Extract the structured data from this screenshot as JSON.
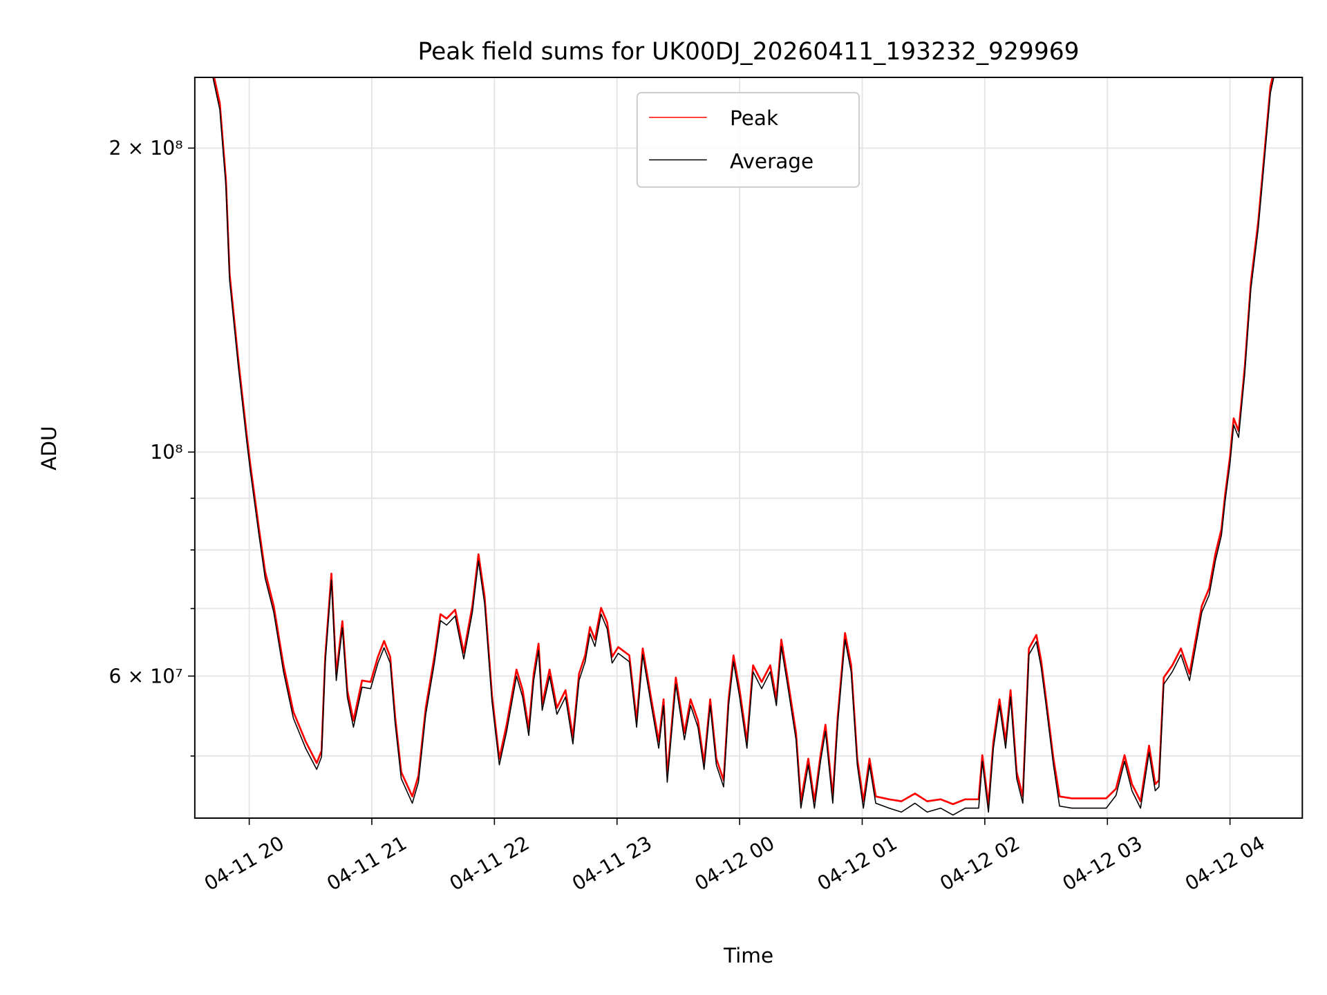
{
  "chart_data": {
    "type": "line",
    "title": "Peak field sums for UK00DJ_20260411_193232_929969",
    "xlabel": "Time",
    "ylabel": "ADU",
    "yscale": "log",
    "ylim": [
      43400000,
      235000000
    ],
    "xlim_hours": [
      19.556,
      28.59
    ],
    "x_unit": "hours since 04-11 00:00",
    "value_scale": 1000000,
    "grid": true,
    "legend_position": "upper-center",
    "x_ticks": [
      {
        "h": 20,
        "label": "04-11 20"
      },
      {
        "h": 21,
        "label": "04-11 21"
      },
      {
        "h": 22,
        "label": "04-11 22"
      },
      {
        "h": 23,
        "label": "04-11 23"
      },
      {
        "h": 24,
        "label": "04-12 00"
      },
      {
        "h": 25,
        "label": "04-12 01"
      },
      {
        "h": 26,
        "label": "04-12 02"
      },
      {
        "h": 27,
        "label": "04-12 03"
      },
      {
        "h": 28,
        "label": "04-12 04"
      }
    ],
    "y_ticks": [
      {
        "v": 200000000,
        "label": "2 × 10⁸"
      },
      {
        "v": 100000000,
        "label": "10⁸"
      },
      {
        "v": 60000000,
        "label": "6 × 10⁷"
      }
    ],
    "y_minor_ticks": [
      50000000,
      70000000,
      80000000,
      90000000
    ],
    "x": [
      19.56,
      19.7,
      19.76,
      19.81,
      19.84,
      19.91,
      19.98,
      20.01,
      20.08,
      20.13,
      20.2,
      20.28,
      20.36,
      20.46,
      20.55,
      20.59,
      20.62,
      20.67,
      20.71,
      20.76,
      20.8,
      20.85,
      20.92,
      20.99,
      21.05,
      21.1,
      21.15,
      21.19,
      21.24,
      21.33,
      21.38,
      21.44,
      21.51,
      21.56,
      21.61,
      21.68,
      21.75,
      21.82,
      21.87,
      21.92,
      21.98,
      22.04,
      22.1,
      22.18,
      22.23,
      22.28,
      22.32,
      22.36,
      22.39,
      22.45,
      22.51,
      22.58,
      22.64,
      22.69,
      22.74,
      22.78,
      22.82,
      22.87,
      22.92,
      22.96,
      23.01,
      23.1,
      23.16,
      23.21,
      23.28,
      23.34,
      23.38,
      23.41,
      23.48,
      23.55,
      23.6,
      23.66,
      23.71,
      23.76,
      23.81,
      23.87,
      23.91,
      23.95,
      24.0,
      24.06,
      24.11,
      24.18,
      24.25,
      24.3,
      24.34,
      24.39,
      24.46,
      24.5,
      24.56,
      24.61,
      24.66,
      24.7,
      24.76,
      24.8,
      24.86,
      24.91,
      24.96,
      25.01,
      25.06,
      25.11,
      25.22,
      25.32,
      25.43,
      25.53,
      25.64,
      25.74,
      25.84,
      25.95,
      25.98,
      26.03,
      26.07,
      26.12,
      26.17,
      26.21,
      26.26,
      26.31,
      26.36,
      26.42,
      26.46,
      26.5,
      26.56,
      26.61,
      26.71,
      26.85,
      26.99,
      27.07,
      27.14,
      27.2,
      27.27,
      27.34,
      27.39,
      27.42,
      27.46,
      27.53,
      27.6,
      27.67,
      27.72,
      27.77,
      27.83,
      27.88,
      27.93,
      27.96,
      28.0,
      28.03,
      28.07,
      28.12,
      28.17,
      28.23,
      28.28,
      28.33,
      28.36,
      28.59
    ],
    "series": [
      {
        "name": "Peak",
        "color": "#ff0000",
        "values": [
          240,
          239,
          221.6,
          186.0,
          150.2,
          123.7,
          103.9,
          97.0,
          83.9,
          76.1,
          70.4,
          61.5,
          55.3,
          51.7,
          49.2,
          50.6,
          62.7,
          75.8,
          60.3,
          68.0,
          58.1,
          54.2,
          59.4,
          59.2,
          62.7,
          65.0,
          62.7,
          54.7,
          48.2,
          45.6,
          47.8,
          55.8,
          62.7,
          69.1,
          68.4,
          69.8,
          63.3,
          70.4,
          79.2,
          71.9,
          57.4,
          49.7,
          53.7,
          60.9,
          58.1,
          53.2,
          60.3,
          64.6,
          56.3,
          60.9,
          55.8,
          58.1,
          52.2,
          60.3,
          62.9,
          67.1,
          65.2,
          70.1,
          67.8,
          62.7,
          64.1,
          62.9,
          54.2,
          63.9,
          56.9,
          51.7,
          56.9,
          47.8,
          59.8,
          52.7,
          56.9,
          54.2,
          49.2,
          56.9,
          49.7,
          47.3,
          56.9,
          62.9,
          58.1,
          51.7,
          61.5,
          59.2,
          61.5,
          56.9,
          65.2,
          59.8,
          52.7,
          45.1,
          49.7,
          45.1,
          50.1,
          53.7,
          45.6,
          54.7,
          66.2,
          61.5,
          49.7,
          45.1,
          49.7,
          45.6,
          45.3,
          45.1,
          45.9,
          45.1,
          45.3,
          44.8,
          45.3,
          45.3,
          50.1,
          44.7,
          51.7,
          56.9,
          51.7,
          58.1,
          48.2,
          45.6,
          63.9,
          65.9,
          62.1,
          56.9,
          49.7,
          45.6,
          45.4,
          45.4,
          45.4,
          46.4,
          50.1,
          46.9,
          45.1,
          51.2,
          46.9,
          47.3,
          59.8,
          61.5,
          63.9,
          60.3,
          65.2,
          70.4,
          73.3,
          79.2,
          83.9,
          90.7,
          99.0,
          108.0,
          104.9,
          121.4,
          147.3,
          168.9,
          197.2,
          230.3,
          239,
          240
        ]
      },
      {
        "name": "Average",
        "color": "#000000",
        "values": [
          240,
          236,
          218.3,
          183.3,
          148.0,
          121.9,
          102.4,
          95.6,
          82.7,
          75.0,
          69.4,
          60.6,
          54.5,
          50.9,
          48.5,
          49.9,
          61.8,
          74.7,
          59.4,
          67.0,
          57.2,
          53.4,
          58.5,
          58.3,
          61.8,
          64.0,
          61.8,
          53.9,
          47.5,
          44.9,
          47.1,
          55.0,
          61.8,
          68.1,
          67.4,
          68.8,
          62.4,
          69.4,
          78.0,
          70.8,
          56.6,
          49.0,
          52.9,
          60.0,
          57.2,
          52.4,
          59.4,
          63.6,
          55.5,
          60.0,
          55.0,
          57.2,
          51.4,
          59.4,
          62.0,
          66.1,
          64.2,
          69.1,
          66.8,
          61.8,
          63.2,
          62.0,
          53.4,
          63.0,
          56.1,
          50.9,
          56.1,
          47.1,
          58.9,
          51.9,
          56.1,
          53.4,
          48.5,
          56.1,
          49.0,
          46.6,
          56.1,
          62.0,
          57.2,
          50.9,
          60.6,
          58.3,
          60.6,
          56.1,
          64.2,
          58.9,
          51.9,
          44.4,
          49.0,
          44.4,
          49.4,
          52.9,
          44.9,
          53.9,
          65.2,
          60.6,
          49.0,
          44.4,
          49.0,
          44.9,
          44.4,
          44.0,
          44.9,
          44.0,
          44.4,
          43.7,
          44.4,
          44.4,
          49.4,
          44.0,
          50.9,
          56.1,
          50.9,
          57.2,
          47.5,
          44.9,
          63.0,
          64.9,
          61.2,
          56.1,
          49.0,
          44.6,
          44.4,
          44.4,
          44.4,
          45.7,
          49.4,
          46.2,
          44.4,
          50.4,
          46.2,
          46.6,
          58.9,
          60.6,
          63.0,
          59.4,
          64.2,
          69.4,
          72.2,
          78.0,
          82.7,
          89.4,
          97.5,
          106.4,
          103.4,
          119.6,
          145.1,
          166.4,
          194.3,
          226.9,
          236,
          240
        ]
      }
    ]
  }
}
